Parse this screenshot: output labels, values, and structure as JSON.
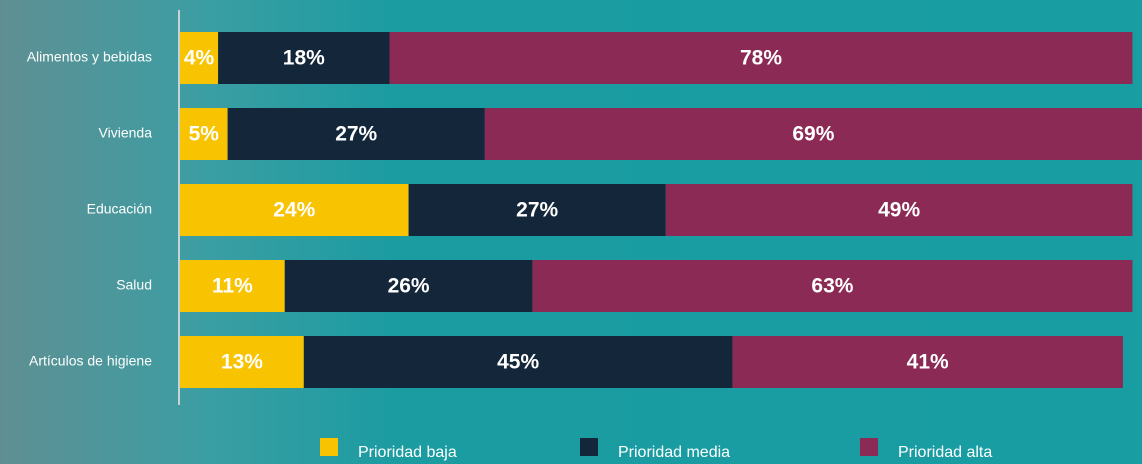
{
  "chart_data": {
    "type": "bar",
    "orientation": "horizontal",
    "stacked": true,
    "legend": "bottom",
    "categories": [
      "Alimentos y bebidas",
      "Vivienda",
      "Educación",
      "Salud",
      "Artículos de higiene"
    ],
    "series": [
      {
        "name": "Prioridad baja",
        "color": "#f8c300",
        "values": [
          4,
          5,
          24,
          11,
          13
        ],
        "value_labels": [
          "4%",
          "5%",
          "24%",
          "11%",
          "13%"
        ]
      },
      {
        "name": "Prioridad media",
        "color": "#14263a",
        "values": [
          18,
          27,
          27,
          26,
          45
        ],
        "value_labels": [
          "18%",
          "27%",
          "27%",
          "26%",
          "45%"
        ]
      },
      {
        "name": "Prioridad alta",
        "color": "#8b2a55",
        "values": [
          78,
          69,
          49,
          63,
          41
        ],
        "value_labels": [
          "78%",
          "69%",
          "49%",
          "63%",
          "41%"
        ]
      }
    ]
  }
}
